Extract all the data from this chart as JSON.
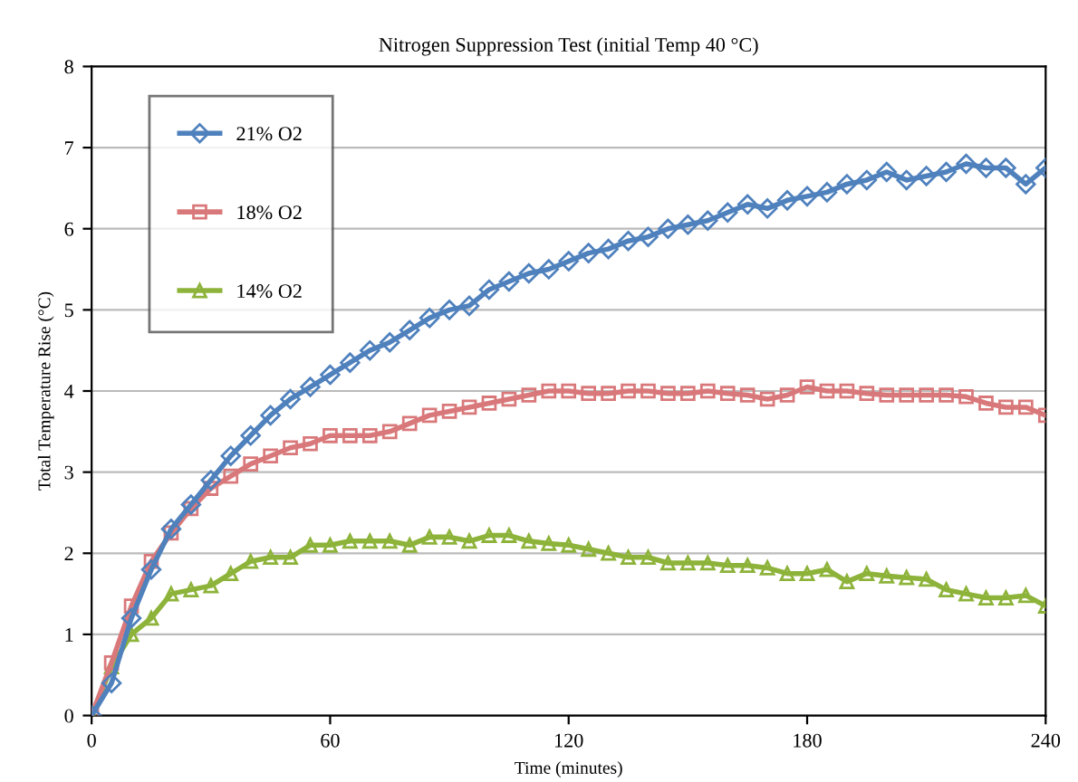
{
  "chart_data": {
    "type": "line",
    "title": "Nitrogen Suppression Test (initial Temp 40 °C)",
    "xlabel": "Time (minutes)",
    "ylabel": "Total Temperature Rise (°C)",
    "x": [
      0,
      5,
      10,
      15,
      20,
      25,
      30,
      35,
      40,
      45,
      50,
      55,
      60,
      65,
      70,
      75,
      80,
      85,
      90,
      95,
      100,
      105,
      110,
      115,
      120,
      125,
      130,
      135,
      140,
      145,
      150,
      155,
      160,
      165,
      170,
      175,
      180,
      185,
      190,
      195,
      200,
      205,
      210,
      215,
      220,
      225,
      230,
      235,
      240
    ],
    "series": [
      {
        "name": "21% O2",
        "color": "#4f81bd",
        "marker": "diamond",
        "values": [
          0,
          0.4,
          1.2,
          1.8,
          2.3,
          2.6,
          2.9,
          3.2,
          3.45,
          3.7,
          3.9,
          4.05,
          4.2,
          4.35,
          4.5,
          4.6,
          4.75,
          4.9,
          5.0,
          5.05,
          5.25,
          5.35,
          5.45,
          5.5,
          5.6,
          5.7,
          5.75,
          5.85,
          5.9,
          6.0,
          6.05,
          6.1,
          6.2,
          6.3,
          6.25,
          6.35,
          6.4,
          6.45,
          6.55,
          6.6,
          6.7,
          6.6,
          6.65,
          6.7,
          6.8,
          6.75,
          6.75,
          6.55,
          6.75
        ]
      },
      {
        "name": "18% O2",
        "color": "#d9787a",
        "marker": "square",
        "values": [
          0,
          0.65,
          1.35,
          1.9,
          2.25,
          2.55,
          2.8,
          2.95,
          3.1,
          3.2,
          3.3,
          3.35,
          3.45,
          3.45,
          3.45,
          3.5,
          3.6,
          3.7,
          3.75,
          3.8,
          3.85,
          3.9,
          3.95,
          4.0,
          4.0,
          3.97,
          3.97,
          4.0,
          4.0,
          3.97,
          3.97,
          4.0,
          3.97,
          3.95,
          3.9,
          3.95,
          4.05,
          4.0,
          4.0,
          3.97,
          3.95,
          3.95,
          3.95,
          3.95,
          3.93,
          3.85,
          3.8,
          3.8,
          3.7
        ]
      },
      {
        "name": "14% O2",
        "color": "#8db33a",
        "marker": "triangle",
        "values": [
          0,
          0.6,
          1.0,
          1.2,
          1.5,
          1.55,
          1.6,
          1.75,
          1.9,
          1.95,
          1.95,
          2.1,
          2.1,
          2.15,
          2.15,
          2.15,
          2.1,
          2.2,
          2.2,
          2.15,
          2.22,
          2.22,
          2.15,
          2.12,
          2.1,
          2.05,
          2.0,
          1.95,
          1.95,
          1.88,
          1.88,
          1.88,
          1.85,
          1.85,
          1.82,
          1.75,
          1.75,
          1.8,
          1.65,
          1.75,
          1.72,
          1.7,
          1.68,
          1.55,
          1.5,
          1.45,
          1.45,
          1.48,
          1.35
        ]
      }
    ],
    "xlim": [
      0,
      240
    ],
    "xticks": [
      0,
      60,
      120,
      180,
      240
    ],
    "ylim": [
      0,
      8
    ],
    "yticks": [
      0,
      1,
      2,
      3,
      4,
      5,
      6,
      7,
      8
    ],
    "grid": "y",
    "legend": "top left",
    "line_style": "solid"
  }
}
